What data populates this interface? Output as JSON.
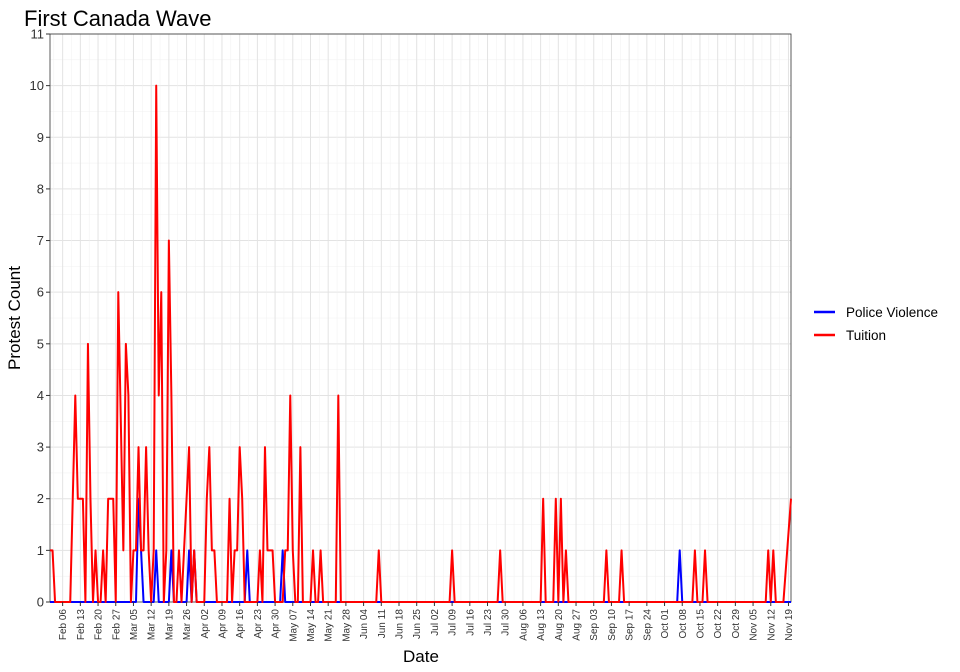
{
  "chart_data": {
    "type": "line",
    "title": "First Canada Wave",
    "xlabel": "Date",
    "ylabel": "Protest Count",
    "ylim": [
      0,
      11
    ],
    "yticks": [
      0,
      1,
      2,
      3,
      4,
      5,
      6,
      7,
      8,
      9,
      10,
      11
    ],
    "x_start": "Feb 01",
    "x_end": "Nov 20",
    "xticks": [
      "Feb 06",
      "Feb 13",
      "Feb 20",
      "Feb 27",
      "Mar 05",
      "Mar 12",
      "Mar 19",
      "Mar 26",
      "Apr 02",
      "Apr 09",
      "Apr 16",
      "Apr 23",
      "Apr 30",
      "May 07",
      "May 14",
      "May 21",
      "May 28",
      "Jun 04",
      "Jun 11",
      "Jun 18",
      "Jun 25",
      "Jul 02",
      "Jul 09",
      "Jul 16",
      "Jul 23",
      "Jul 30",
      "Aug 06",
      "Aug 13",
      "Aug 20",
      "Aug 27",
      "Sep 03",
      "Sep 10",
      "Sep 17",
      "Sep 24",
      "Oct 01",
      "Oct 08",
      "Oct 15",
      "Oct 22",
      "Oct 29",
      "Nov 05",
      "Nov 12",
      "Nov 19"
    ],
    "grid": true,
    "legend_position": "right",
    "series": [
      {
        "name": "Police Violence",
        "color": "#0000ff",
        "points": [
          [
            "Feb 01",
            0
          ],
          [
            "Mar 06",
            0
          ],
          [
            "Mar 07",
            2
          ],
          [
            "Mar 08",
            1
          ],
          [
            "Mar 09",
            0
          ],
          [
            "Mar 13",
            0
          ],
          [
            "Mar 14",
            1
          ],
          [
            "Mar 15",
            0
          ],
          [
            "Mar 19",
            0
          ],
          [
            "Mar 20",
            1
          ],
          [
            "Mar 21",
            0
          ],
          [
            "Mar 26",
            0
          ],
          [
            "Mar 27",
            1
          ],
          [
            "Mar 28",
            0
          ],
          [
            "Mar 29",
            1
          ],
          [
            "Mar 30",
            0
          ],
          [
            "Apr 18",
            0
          ],
          [
            "Apr 19",
            1
          ],
          [
            "Apr 20",
            0
          ],
          [
            "May 02",
            0
          ],
          [
            "May 03",
            1
          ],
          [
            "May 04",
            0
          ],
          [
            "Oct 06",
            0
          ],
          [
            "Oct 07",
            1
          ],
          [
            "Oct 08",
            0
          ],
          [
            "Nov 20",
            0
          ]
        ]
      },
      {
        "name": "Tuition",
        "color": "#ff0000",
        "points": [
          [
            "Feb 01",
            1
          ],
          [
            "Feb 02",
            1
          ],
          [
            "Feb 03",
            0
          ],
          [
            "Feb 09",
            0
          ],
          [
            "Feb 10",
            2
          ],
          [
            "Feb 11",
            4
          ],
          [
            "Feb 12",
            2
          ],
          [
            "Feb 13",
            2
          ],
          [
            "Feb 14",
            2
          ],
          [
            "Feb 15",
            0
          ],
          [
            "Feb 16",
            5
          ],
          [
            "Feb 17",
            2
          ],
          [
            "Feb 18",
            0
          ],
          [
            "Feb 19",
            1
          ],
          [
            "Feb 20",
            0
          ],
          [
            "Feb 21",
            0
          ],
          [
            "Feb 22",
            1
          ],
          [
            "Feb 23",
            0
          ],
          [
            "Feb 24",
            2
          ],
          [
            "Feb 25",
            2
          ],
          [
            "Feb 26",
            2
          ],
          [
            "Feb 27",
            0
          ],
          [
            "Feb 28",
            6
          ],
          [
            "Mar 01",
            1
          ],
          [
            "Mar 02",
            5
          ],
          [
            "Mar 03",
            4
          ],
          [
            "Mar 04",
            0
          ],
          [
            "Mar 05",
            1
          ],
          [
            "Mar 06",
            1
          ],
          [
            "Mar 07",
            3
          ],
          [
            "Mar 08",
            1
          ],
          [
            "Mar 09",
            1
          ],
          [
            "Mar 10",
            3
          ],
          [
            "Mar 11",
            1
          ],
          [
            "Mar 12",
            0
          ],
          [
            "Mar 13",
            1
          ],
          [
            "Mar 14",
            10
          ],
          [
            "Mar 15",
            4
          ],
          [
            "Mar 16",
            6
          ],
          [
            "Mar 17",
            0
          ],
          [
            "Mar 18",
            1
          ],
          [
            "Mar 19",
            7
          ],
          [
            "Mar 20",
            4
          ],
          [
            "Mar 21",
            0
          ],
          [
            "Mar 22",
            0
          ],
          [
            "Mar 23",
            1
          ],
          [
            "Mar 24",
            0
          ],
          [
            "Mar 25",
            1
          ],
          [
            "Mar 26",
            2
          ],
          [
            "Mar 27",
            3
          ],
          [
            "Mar 28",
            0
          ],
          [
            "Mar 29",
            1
          ],
          [
            "Mar 30",
            0
          ],
          [
            "Mar 31",
            0
          ],
          [
            "Apr 01",
            0
          ],
          [
            "Apr 02",
            0
          ],
          [
            "Apr 03",
            2
          ],
          [
            "Apr 04",
            3
          ],
          [
            "Apr 05",
            1
          ],
          [
            "Apr 06",
            1
          ],
          [
            "Apr 07",
            0
          ],
          [
            "Apr 11",
            0
          ],
          [
            "Apr 12",
            2
          ],
          [
            "Apr 13",
            0
          ],
          [
            "Apr 14",
            1
          ],
          [
            "Apr 15",
            1
          ],
          [
            "Apr 16",
            3
          ],
          [
            "Apr 17",
            2
          ],
          [
            "Apr 18",
            0
          ],
          [
            "Apr 23",
            0
          ],
          [
            "Apr 24",
            1
          ],
          [
            "Apr 25",
            0
          ],
          [
            "Apr 26",
            3
          ],
          [
            "Apr 27",
            1
          ],
          [
            "Apr 28",
            1
          ],
          [
            "Apr 29",
            1
          ],
          [
            "Apr 30",
            0
          ],
          [
            "May 03",
            0
          ],
          [
            "May 04",
            1
          ],
          [
            "May 05",
            1
          ],
          [
            "May 06",
            4
          ],
          [
            "May 07",
            1
          ],
          [
            "May 08",
            0
          ],
          [
            "May 09",
            0
          ],
          [
            "May 10",
            3
          ],
          [
            "May 11",
            0
          ],
          [
            "May 12",
            0
          ],
          [
            "May 13",
            0
          ],
          [
            "May 14",
            0
          ],
          [
            "May 15",
            1
          ],
          [
            "May 16",
            0
          ],
          [
            "May 17",
            0
          ],
          [
            "May 18",
            1
          ],
          [
            "May 19",
            0
          ],
          [
            "May 24",
            0
          ],
          [
            "May 25",
            4
          ],
          [
            "May 26",
            0
          ],
          [
            "Jun 09",
            0
          ],
          [
            "Jun 10",
            1
          ],
          [
            "Jun 11",
            0
          ],
          [
            "Jul 08",
            0
          ],
          [
            "Jul 09",
            1
          ],
          [
            "Jul 10",
            0
          ],
          [
            "Jul 27",
            0
          ],
          [
            "Jul 28",
            1
          ],
          [
            "Jul 29",
            0
          ],
          [
            "Aug 13",
            0
          ],
          [
            "Aug 14",
            2
          ],
          [
            "Aug 15",
            0
          ],
          [
            "Aug 18",
            0
          ],
          [
            "Aug 19",
            2
          ],
          [
            "Aug 20",
            0
          ],
          [
            "Aug 21",
            2
          ],
          [
            "Aug 22",
            0
          ],
          [
            "Aug 23",
            1
          ],
          [
            "Aug 24",
            0
          ],
          [
            "Sep 07",
            0
          ],
          [
            "Sep 08",
            1
          ],
          [
            "Sep 09",
            0
          ],
          [
            "Sep 13",
            0
          ],
          [
            "Sep 14",
            1
          ],
          [
            "Sep 15",
            0
          ],
          [
            "Oct 12",
            0
          ],
          [
            "Oct 13",
            1
          ],
          [
            "Oct 14",
            0
          ],
          [
            "Oct 16",
            0
          ],
          [
            "Oct 17",
            1
          ],
          [
            "Oct 18",
            0
          ],
          [
            "Nov 10",
            0
          ],
          [
            "Nov 11",
            1
          ],
          [
            "Nov 12",
            0
          ],
          [
            "Nov 13",
            1
          ],
          [
            "Nov 14",
            0
          ],
          [
            "Nov 17",
            0
          ],
          [
            "Nov 20",
            2
          ]
        ]
      }
    ]
  }
}
